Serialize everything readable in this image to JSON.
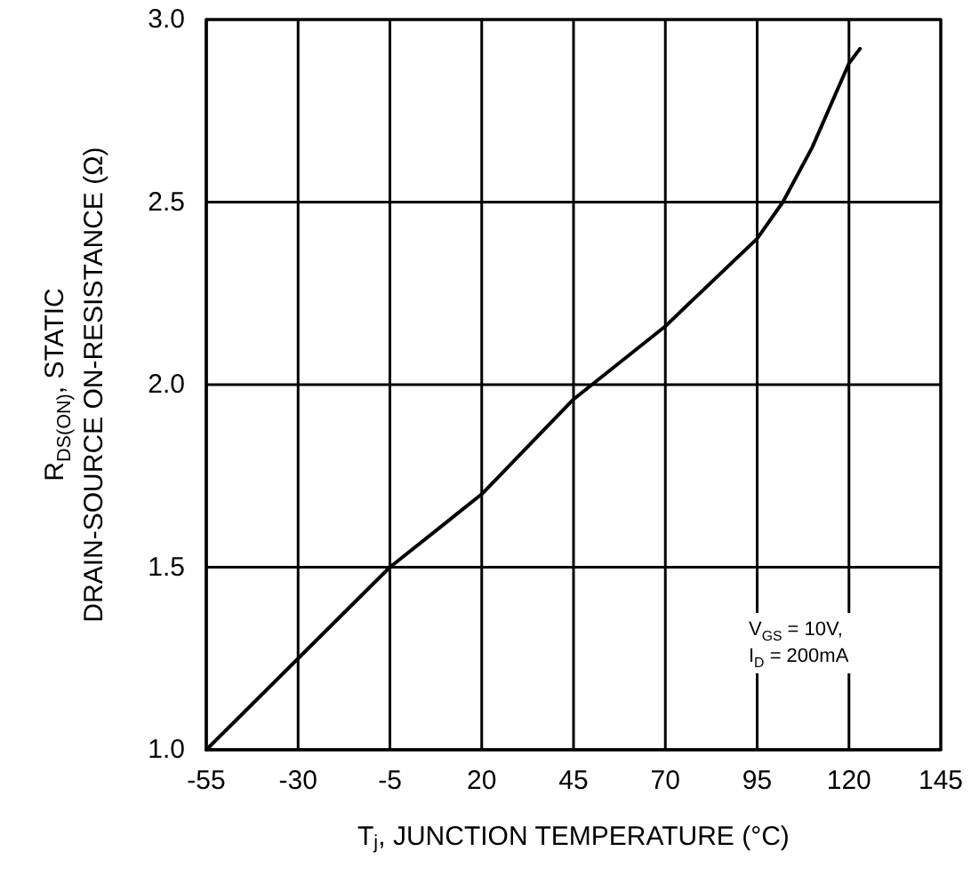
{
  "chart_data": {
    "type": "line",
    "xlabel": "T$_{j}$, JUNCTION TEMPERATURE (°C)",
    "ylabel": "R$_{DS(ON)}$, STATIC\nDRAIN-SOURCE ON-RESISTANCE (Ω)",
    "annotations": [
      "V$_{GS}$ = 10V,\nI$_{D}$ = 200mA"
    ],
    "series": [
      {
        "color": "#000000",
        "x": [
          -55,
          -30,
          -5,
          20,
          45,
          70,
          95,
          102,
          110,
          120,
          123
        ],
        "values": [
          1.0,
          1.25,
          1.5,
          1.7,
          1.96,
          2.16,
          2.4,
          2.5,
          2.65,
          2.88,
          2.92
        ]
      }
    ],
    "xlim": [
      -55,
      145
    ],
    "xticks": [
      -55,
      -30,
      -5,
      20,
      45,
      70,
      95,
      120,
      145
    ],
    "ylim": [
      1.0,
      3.0
    ],
    "yticks": [
      {
        "value": 1.0,
        "label": "1.0"
      },
      {
        "value": 1.5,
        "label": "1.5"
      },
      {
        "value": 2.0,
        "label": "2.0"
      },
      {
        "value": 2.5,
        "label": "2.5"
      },
      {
        "value": 3.0,
        "label": "3.0"
      }
    ],
    "grid": true,
    "marker": "none",
    "line_style": "solid"
  }
}
